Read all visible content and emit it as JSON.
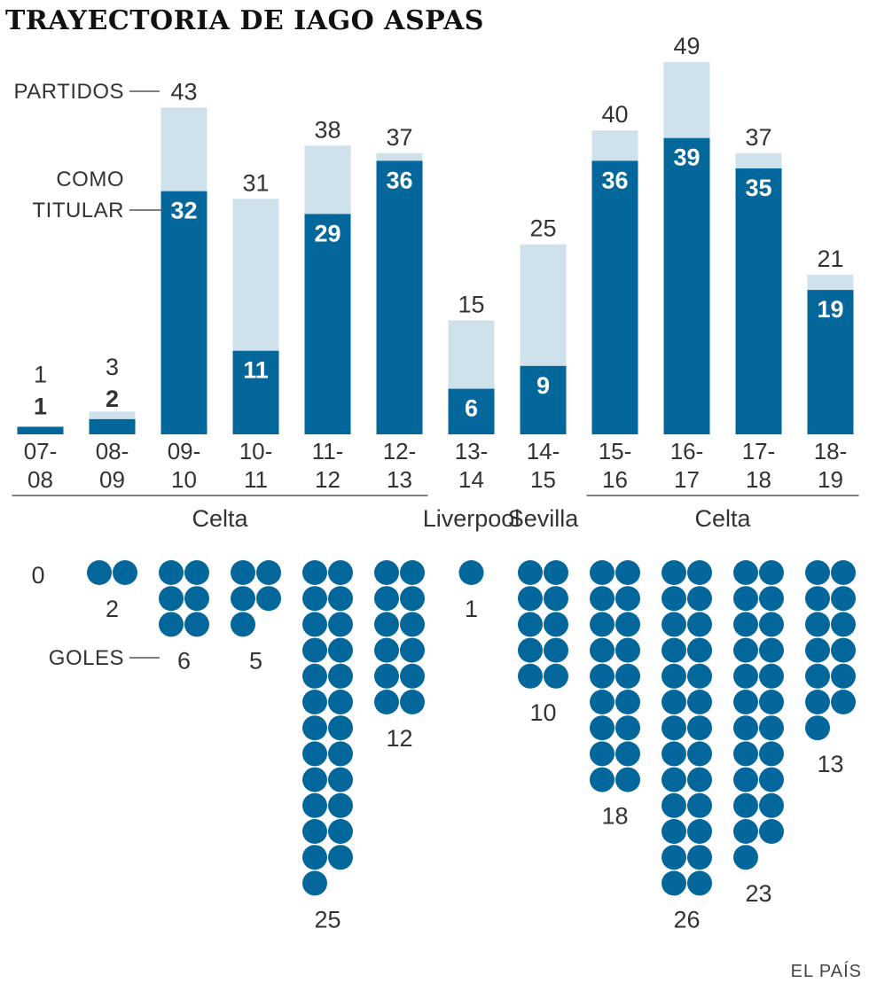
{
  "chart_data": {
    "type": "bar",
    "title": "TRAYECTORIA DE IAGO ASPAS",
    "categories": [
      "07-08",
      "08-09",
      "09-10",
      "10-11",
      "11-12",
      "12-13",
      "13-14",
      "14-15",
      "15-16",
      "16-17",
      "17-18",
      "18-19"
    ],
    "tick_lines": [
      [
        "07-",
        "08"
      ],
      [
        "08-",
        "09"
      ],
      [
        "09-",
        "10"
      ],
      [
        "10-",
        "11"
      ],
      [
        "11-",
        "12"
      ],
      [
        "12-",
        "13"
      ],
      [
        "13-",
        "14"
      ],
      [
        "14-",
        "15"
      ],
      [
        "15-",
        "16"
      ],
      [
        "16-",
        "17"
      ],
      [
        "17-",
        "18"
      ],
      [
        "18-",
        "19"
      ]
    ],
    "series": [
      {
        "name": "PARTIDOS",
        "values": [
          1,
          3,
          43,
          31,
          38,
          37,
          15,
          25,
          40,
          49,
          37,
          21
        ]
      },
      {
        "name": "COMO TITULAR",
        "values": [
          1,
          2,
          32,
          11,
          29,
          36,
          6,
          9,
          36,
          39,
          35,
          19
        ]
      },
      {
        "name": "GOLES",
        "values": [
          0,
          2,
          6,
          5,
          25,
          12,
          1,
          10,
          18,
          26,
          23,
          13
        ]
      }
    ],
    "ylim": [
      0,
      49
    ],
    "clubs": [
      {
        "name": "Celta",
        "from": 0,
        "to": 5
      },
      {
        "name": "Liverpool",
        "from": 6,
        "to": 6
      },
      {
        "name": "Sevilla",
        "from": 7,
        "to": 7
      },
      {
        "name": "Celta",
        "from": 8,
        "to": 11
      }
    ],
    "legend": {
      "partidos": "PARTIDOS",
      "titular_line1": "COMO",
      "titular_line2": "TITULAR",
      "goles": "GOLES"
    },
    "colors": {
      "partidos": "#cfe2ec",
      "titular": "#03679b",
      "goles": "#03679b",
      "axis": "#555555"
    }
  },
  "source": "EL PAÍS"
}
